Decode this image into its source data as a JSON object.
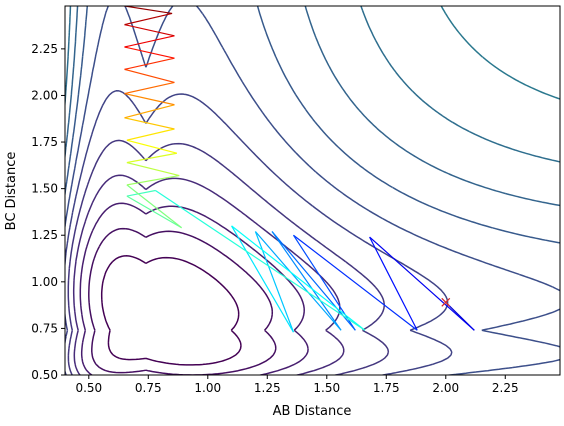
{
  "chart_data": {
    "type": "contour",
    "title": "",
    "xlabel": "AB Distance",
    "ylabel": "BC Distance",
    "xlim": [
      0.4,
      2.48
    ],
    "ylim": [
      0.5,
      2.48
    ],
    "x_ticks": [
      0.5,
      0.75,
      1.0,
      1.25,
      1.5,
      1.75,
      2.0,
      2.25
    ],
    "y_ticks": [
      0.5,
      0.75,
      1.0,
      1.25,
      1.5,
      1.75,
      2.0,
      2.25
    ],
    "x_tick_labels": [
      "0.50",
      "0.75",
      "1.00",
      "1.25",
      "1.50",
      "1.75",
      "2.00",
      "2.25"
    ],
    "y_tick_labels": [
      "0.50",
      "0.75",
      "1.00",
      "1.25",
      "1.50",
      "1.75",
      "2.00",
      "2.25"
    ],
    "colormap": "viridis",
    "surface": {
      "kind": "potential-energy-surface",
      "corner_point": [
        0.68,
        0.66
      ],
      "asymptote_bc": 0.74,
      "contour_levels": 26
    },
    "trajectory": {
      "colormap": "jet",
      "color_direction": "late-dark-blue-to-early-red",
      "start": {
        "x": 2.0,
        "y": 0.89,
        "marker": "x",
        "color": "#d62728"
      },
      "points": [
        [
          2.0,
          0.89
        ],
        [
          2.12,
          0.74
        ],
        [
          1.68,
          1.24
        ],
        [
          1.88,
          0.74
        ],
        [
          1.36,
          1.25
        ],
        [
          1.62,
          0.74
        ],
        [
          1.27,
          1.27
        ],
        [
          1.56,
          0.74
        ],
        [
          1.2,
          1.27
        ],
        [
          1.36,
          0.73
        ],
        [
          1.1,
          1.3
        ],
        [
          1.66,
          0.74
        ],
        [
          0.78,
          1.49
        ],
        [
          0.66,
          1.46
        ],
        [
          0.89,
          1.29
        ],
        [
          0.66,
          1.52
        ],
        [
          0.88,
          1.57
        ],
        [
          0.66,
          1.64
        ],
        [
          0.87,
          1.69
        ],
        [
          0.66,
          1.76
        ],
        [
          0.86,
          1.82
        ],
        [
          0.65,
          1.88
        ],
        [
          0.86,
          1.95
        ],
        [
          0.65,
          2.01
        ],
        [
          0.86,
          2.07
        ],
        [
          0.65,
          2.14
        ],
        [
          0.86,
          2.2
        ],
        [
          0.65,
          2.26
        ],
        [
          0.86,
          2.32
        ],
        [
          0.65,
          2.38
        ],
        [
          0.85,
          2.44
        ],
        [
          0.65,
          2.48
        ]
      ]
    }
  }
}
